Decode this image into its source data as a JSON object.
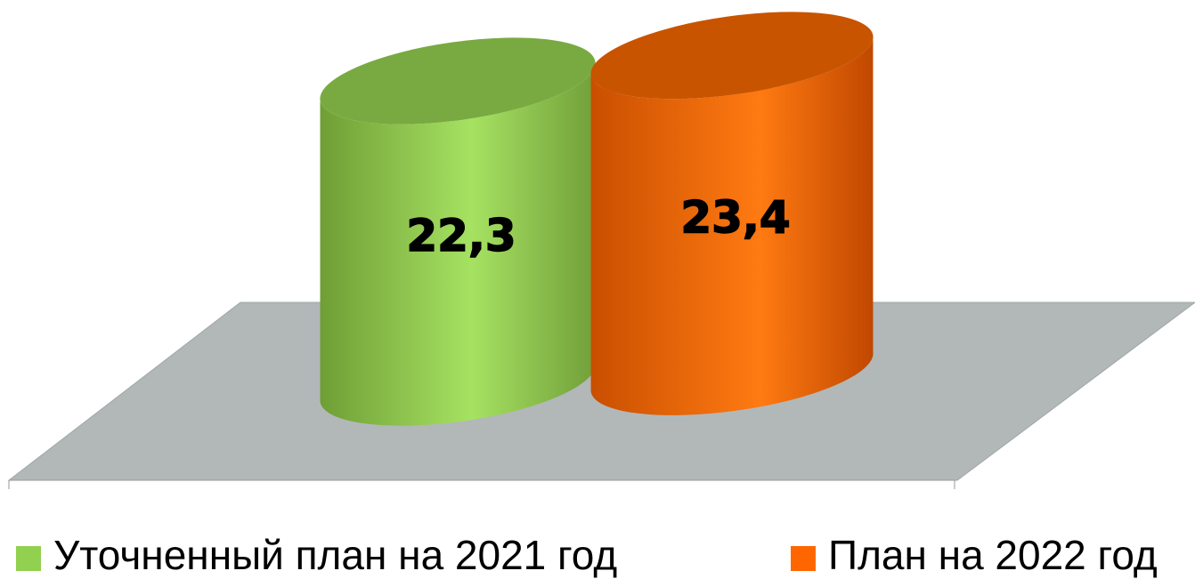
{
  "chart_data": {
    "type": "bar",
    "series": [
      {
        "name": "Уточненный план на 2021 год",
        "color": "#92d050",
        "values": [
          22.3
        ],
        "value_labels": [
          "22,3"
        ]
      },
      {
        "name": "План на 2022 год",
        "color": "#ff6600",
        "values": [
          23.4
        ],
        "value_labels": [
          "23,4"
        ]
      }
    ]
  }
}
